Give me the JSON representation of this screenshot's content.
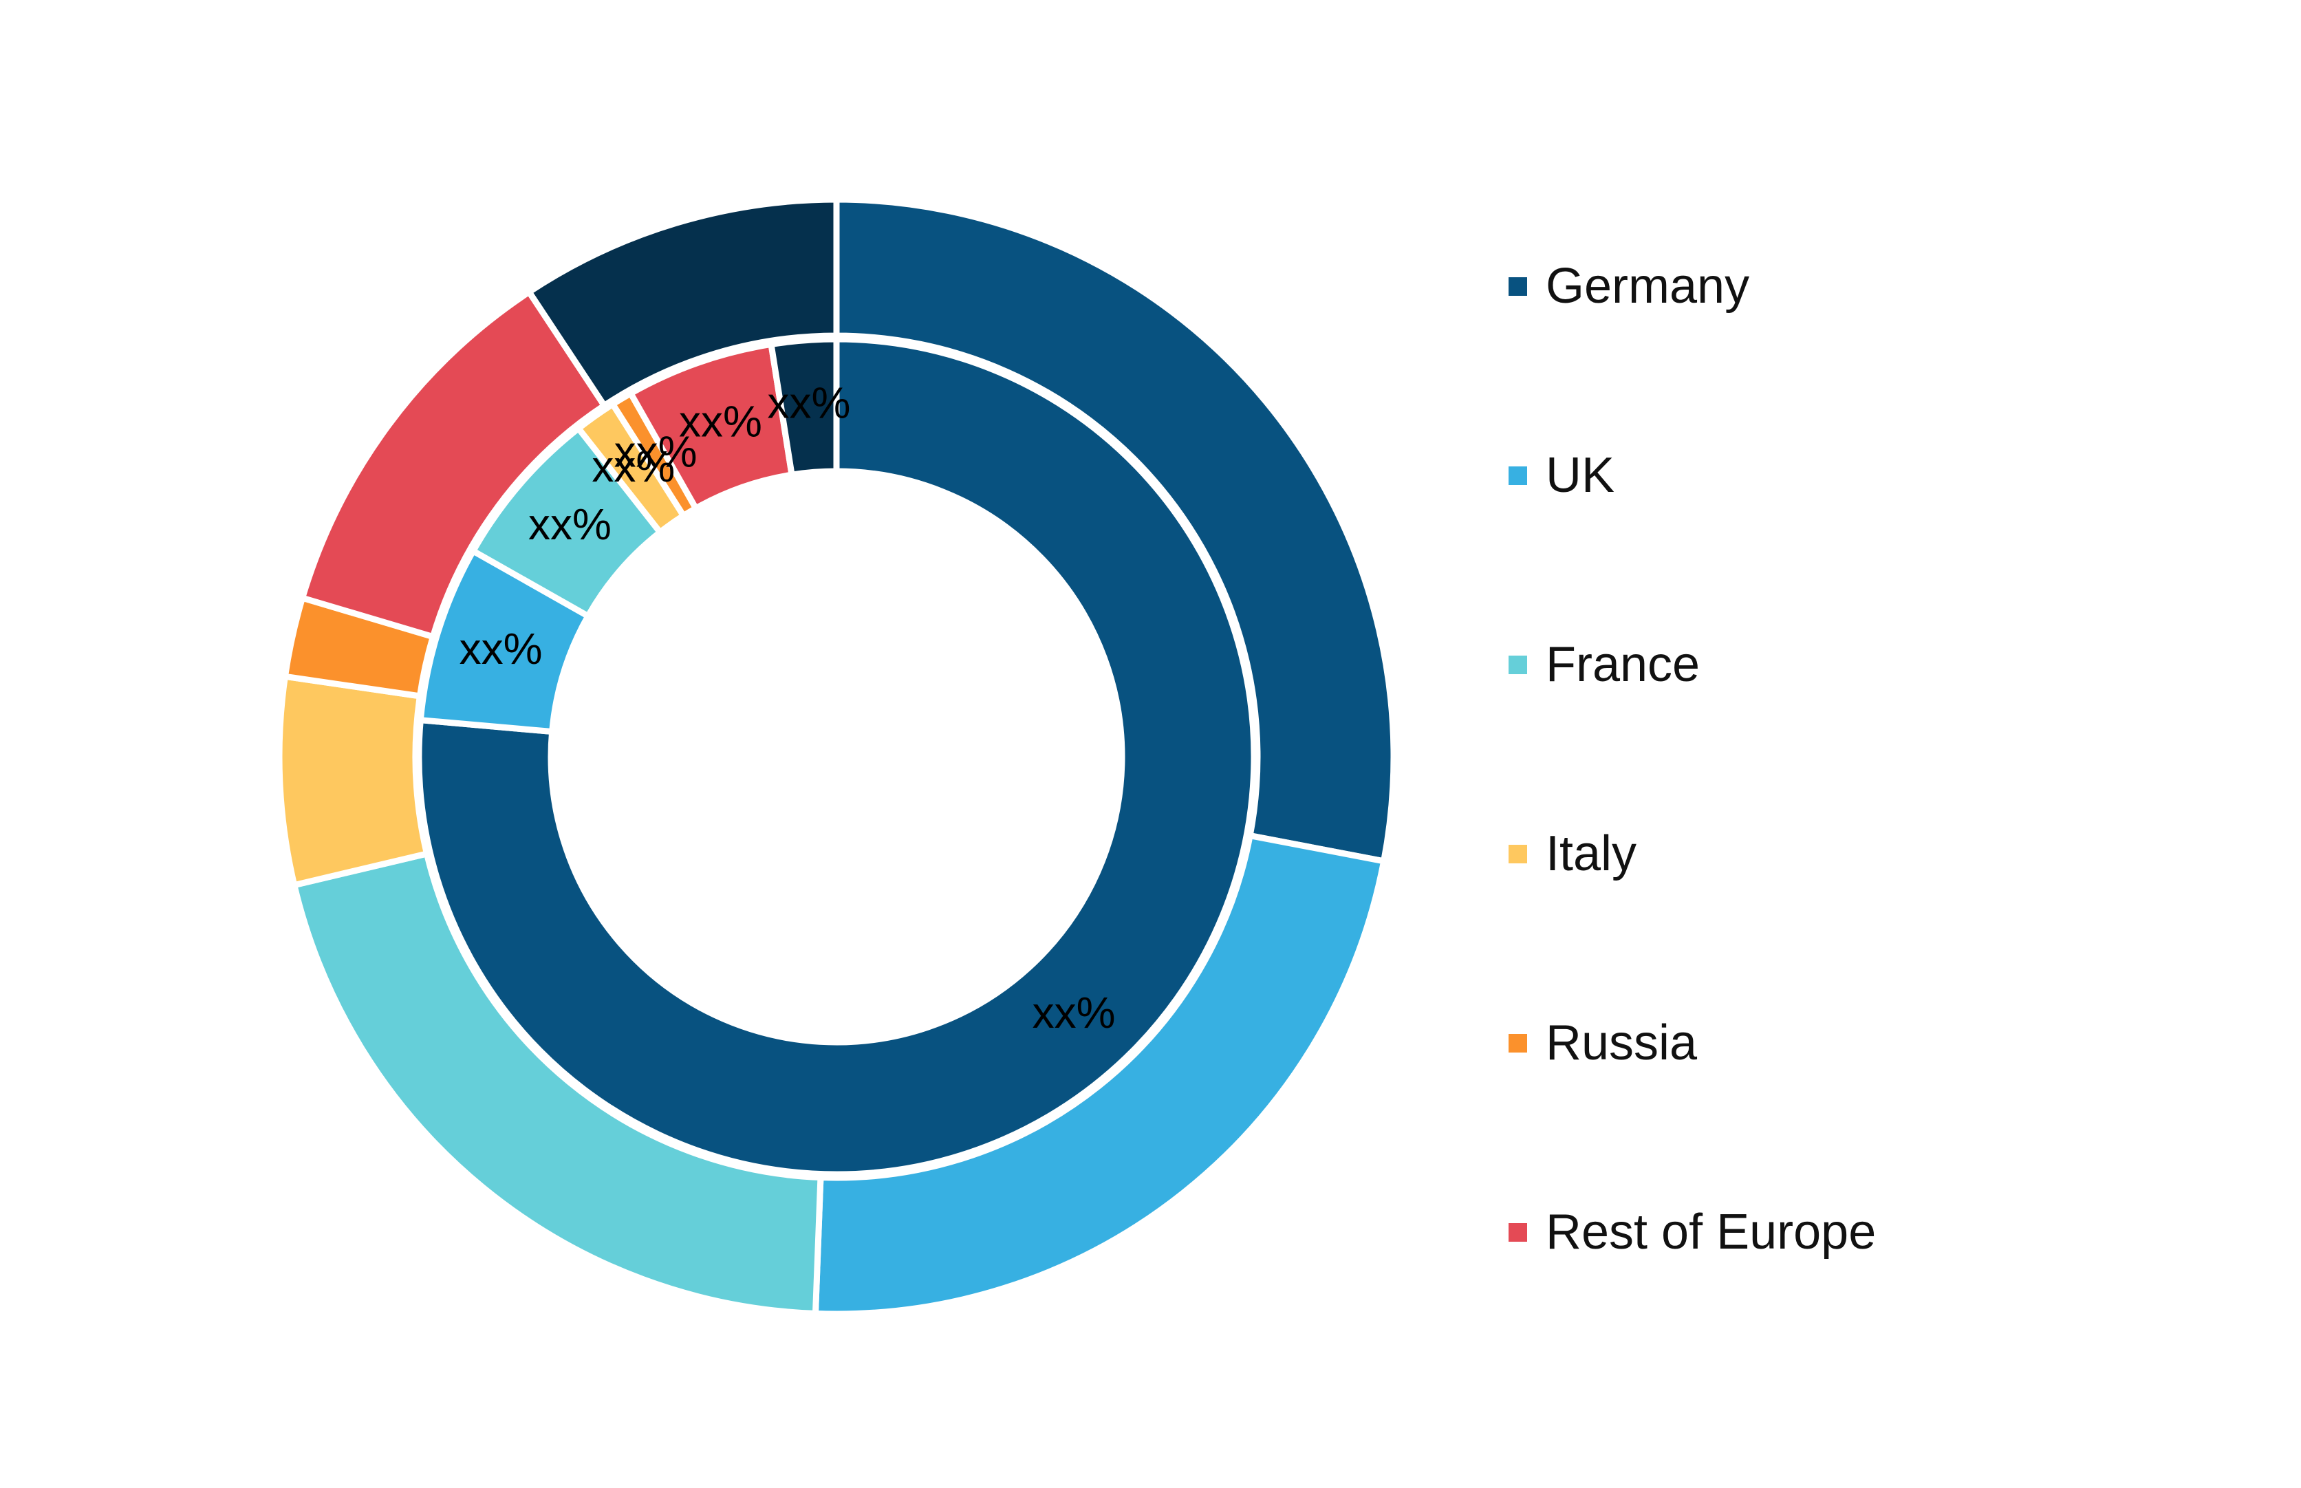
{
  "chart_data": {
    "type": "pie",
    "variant": "double-donut",
    "title": "",
    "legend_position": "right",
    "legend": [
      {
        "name": "Germany",
        "color": "#085280"
      },
      {
        "name": "UK",
        "color": "#37B0E2"
      },
      {
        "name": "France",
        "color": "#65CFD9"
      },
      {
        "name": "Italy",
        "color": "#FEC85F"
      },
      {
        "name": "Russia",
        "color": "#FB912C"
      },
      {
        "name": "Rest of Europe",
        "color": "#E44A55"
      }
    ],
    "rings": [
      {
        "ring": "outer",
        "segments": [
          {
            "color": "#085280",
            "value": 28.0
          },
          {
            "color": "#37B0E2",
            "value": 22.6
          },
          {
            "color": "#65CFD9",
            "value": 20.7
          },
          {
            "color": "#FEC85F",
            "value": 6.0
          },
          {
            "color": "#FB912C",
            "value": 2.3
          },
          {
            "color": "#E44A55",
            "value": 11.1
          },
          {
            "color": "#05304D",
            "value": 9.3
          }
        ]
      },
      {
        "ring": "inner",
        "segments": [
          {
            "color": "#085280",
            "value": 76.4,
            "label": "xx%"
          },
          {
            "color": "#37B0E2",
            "value": 6.8,
            "label": "xx%"
          },
          {
            "color": "#65CFD9",
            "value": 6.2,
            "label": "xx%"
          },
          {
            "color": "#FEC85F",
            "value": 1.6,
            "label": "xx%"
          },
          {
            "color": "#FB912C",
            "value": 0.8,
            "label": "xx%"
          },
          {
            "color": "#E44A55",
            "value": 5.7,
            "label": "xx%"
          },
          {
            "color": "#05304D",
            "value": 2.5,
            "label": "xx%"
          }
        ]
      }
    ]
  }
}
